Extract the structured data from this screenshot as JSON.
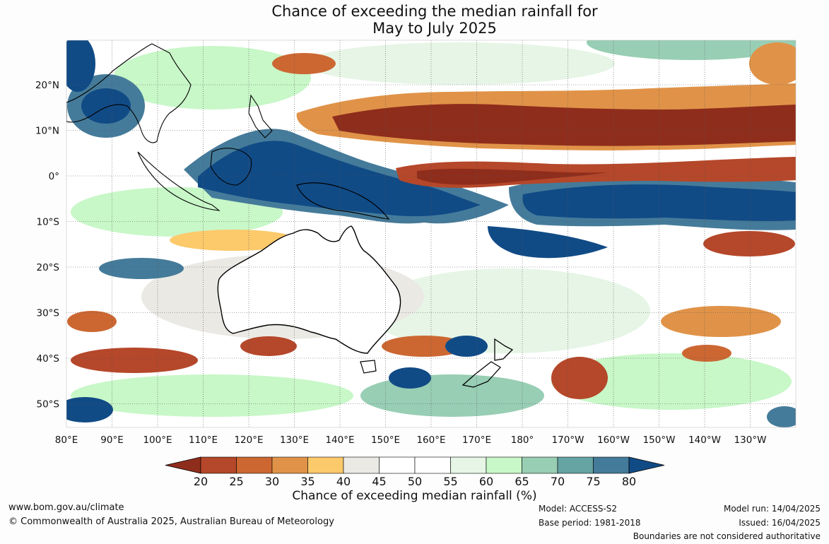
{
  "title_line1": "Chance of exceeding the median rainfall for",
  "title_line2": "May to July 2025",
  "lon_labels": [
    "80°E",
    "90°E",
    "100°E",
    "110°E",
    "120°E",
    "130°E",
    "140°E",
    "150°E",
    "160°E",
    "170°E",
    "180°",
    "170°W",
    "160°W",
    "150°W",
    "140°W",
    "130°W"
  ],
  "lat_labels": [
    "20°N",
    "10°N",
    "0°",
    "10°S",
    "20°S",
    "30°S",
    "40°S",
    "50°S"
  ],
  "colorbar": {
    "label": "Chance of exceeding median rainfall (%)",
    "ticks": [
      "20",
      "25",
      "30",
      "35",
      "40",
      "45",
      "50",
      "55",
      "60",
      "65",
      "70",
      "75",
      "80"
    ],
    "colors": [
      "#8f2d1c",
      "#b5472a",
      "#cc6732",
      "#e09348",
      "#fcc96b",
      "#ebe9e4",
      "#ffffff",
      "#ffffff",
      "#e6f5e6",
      "#c8f7c8",
      "#98ceb4",
      "#66a3a3",
      "#457b9a",
      "#114b86"
    ]
  },
  "footer": {
    "website": "www.bom.gov.au/climate",
    "copyright": "© Commonwealth of Australia 2025, Australian Bureau of Meteorology",
    "model": "Model: ACCESS-S2",
    "base_period": "Base period: 1981-2018",
    "model_run": "Model run: 14/04/2025",
    "issued": "Issued: 16/04/2025",
    "boundaries": "Boundaries are not considered authoritative"
  }
}
